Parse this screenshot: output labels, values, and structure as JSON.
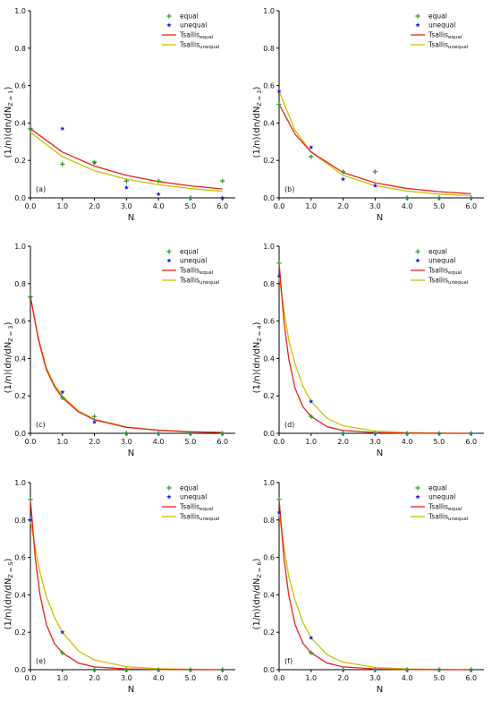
{
  "chart_data": [
    {
      "type": "scatter",
      "panel_label": "(a)",
      "xlabel": "N",
      "ylabel": {
        "prefix": "(1/n)(dn/dN",
        "sub": "Z = 1",
        "suffix": ")"
      },
      "xlim": [
        0,
        6.4
      ],
      "ylim": [
        0,
        1.0
      ],
      "xticks": [
        "0.0",
        "1.0",
        "2.0",
        "3.0",
        "4.0",
        "5.0",
        "6.0"
      ],
      "yticks": [
        "0.0",
        "0.2",
        "0.4",
        "0.6",
        "0.8",
        "1.0"
      ],
      "legend_position": "top-right",
      "points": {
        "equal": {
          "x": [
            0,
            1,
            2,
            3,
            4,
            5,
            6
          ],
          "y": [
            0.37,
            0.18,
            0.19,
            0.09,
            0.09,
            0.0,
            0.09
          ]
        },
        "unequal": {
          "x": [
            0,
            1,
            2,
            3,
            4,
            5,
            6
          ],
          "y": [
            0.37,
            0.37,
            0.19,
            0.055,
            0.02,
            0.0,
            0.0
          ]
        }
      },
      "curves": {
        "equal": {
          "x": [
            0,
            1,
            2,
            3,
            4,
            5,
            6
          ],
          "y": [
            0.37,
            0.245,
            0.17,
            0.12,
            0.087,
            0.064,
            0.048
          ]
        },
        "unequal": {
          "x": [
            0,
            1,
            2,
            3,
            4,
            5,
            6
          ],
          "y": [
            0.35,
            0.22,
            0.145,
            0.1,
            0.07,
            0.05,
            0.035
          ]
        }
      }
    },
    {
      "type": "scatter",
      "panel_label": "(b)",
      "xlabel": "N",
      "ylabel": {
        "prefix": "(1/n)(dn/dN",
        "sub": "Z = 2",
        "suffix": ")"
      },
      "xlim": [
        0,
        6.4
      ],
      "ylim": [
        0,
        1.0
      ],
      "xticks": [
        "0.0",
        "1.0",
        "2.0",
        "3.0",
        "4.0",
        "5.0",
        "6.0"
      ],
      "yticks": [
        "0.0",
        "0.2",
        "0.4",
        "0.6",
        "0.8",
        "1.0"
      ],
      "legend_position": "top-right",
      "points": {
        "equal": {
          "x": [
            0,
            1,
            2,
            3,
            4,
            5,
            6
          ],
          "y": [
            0.5,
            0.22,
            0.14,
            0.14,
            0.0,
            0.0,
            0.0
          ]
        },
        "unequal": {
          "x": [
            0,
            1,
            2,
            3,
            4,
            5,
            6
          ],
          "y": [
            0.57,
            0.27,
            0.1,
            0.065,
            0.0,
            0.0,
            0.0
          ]
        }
      },
      "curves": {
        "equal": {
          "x": [
            0,
            0.5,
            1,
            2,
            3,
            4,
            5,
            6
          ],
          "y": [
            0.5,
            0.34,
            0.245,
            0.135,
            0.08,
            0.05,
            0.033,
            0.022
          ]
        },
        "unequal": {
          "x": [
            0,
            0.5,
            1,
            2,
            3,
            4,
            5,
            6
          ],
          "y": [
            0.57,
            0.36,
            0.245,
            0.12,
            0.065,
            0.036,
            0.02,
            0.012
          ]
        }
      }
    },
    {
      "type": "scatter",
      "panel_label": "(c)",
      "xlabel": "N",
      "ylabel": {
        "prefix": "(1/n)(dn/dN",
        "sub": "Z = 3",
        "suffix": ")"
      },
      "xlim": [
        0,
        6.4
      ],
      "ylim": [
        0,
        1.0
      ],
      "xticks": [
        "0.0",
        "1.0",
        "2.0",
        "3.0",
        "4.0",
        "5.0",
        "6.0"
      ],
      "yticks": [
        "0.0",
        "0.2",
        "0.4",
        "0.6",
        "0.8",
        "1.0"
      ],
      "legend_position": "top-right",
      "points": {
        "equal": {
          "x": [
            0,
            1,
            2,
            3,
            4,
            5,
            6
          ],
          "y": [
            0.73,
            0.19,
            0.09,
            0.0,
            0.0,
            0.0,
            0.0
          ]
        },
        "unequal": {
          "x": [
            0,
            1,
            2,
            3,
            4,
            5,
            6
          ],
          "y": [
            0.73,
            0.22,
            0.06,
            0.0,
            0.0,
            0.0,
            0.0
          ]
        }
      },
      "curves": {
        "equal": {
          "x": [
            0,
            0.25,
            0.5,
            0.75,
            1,
            1.5,
            2,
            3,
            4,
            5,
            6
          ],
          "y": [
            0.73,
            0.5,
            0.34,
            0.25,
            0.19,
            0.115,
            0.072,
            0.032,
            0.016,
            0.008,
            0.004
          ]
        },
        "unequal": {
          "x": [
            0,
            0.25,
            0.5,
            0.75,
            1,
            1.5,
            2,
            3,
            4,
            5,
            6
          ],
          "y": [
            0.73,
            0.51,
            0.35,
            0.26,
            0.2,
            0.12,
            0.075,
            0.034,
            0.017,
            0.009,
            0.005
          ]
        }
      }
    },
    {
      "type": "scatter",
      "panel_label": "(d)",
      "xlabel": "N",
      "ylabel": {
        "prefix": "(1/n)(dn/dN",
        "sub": "Z = 4",
        "suffix": ")"
      },
      "xlim": [
        0,
        6.4
      ],
      "ylim": [
        0,
        1.0
      ],
      "xticks": [
        "0.0",
        "1.0",
        "2.0",
        "3.0",
        "4.0",
        "5.0",
        "6.0"
      ],
      "yticks": [
        "0.0",
        "0.2",
        "0.4",
        "0.6",
        "0.8",
        "1.0"
      ],
      "legend_position": "top-right",
      "points": {
        "equal": {
          "x": [
            0,
            1,
            2,
            3,
            4,
            5,
            6
          ],
          "y": [
            0.91,
            0.09,
            0.0,
            0.0,
            0.0,
            0.0,
            0.0
          ]
        },
        "unequal": {
          "x": [
            0,
            1,
            2,
            3,
            4,
            5,
            6
          ],
          "y": [
            0.84,
            0.17,
            0.0,
            0.0,
            0.0,
            0.0,
            0.0
          ]
        }
      },
      "curves": {
        "equal": {
          "x": [
            0,
            0.15,
            0.3,
            0.5,
            0.75,
            1,
            1.5,
            2,
            3,
            4,
            5,
            6
          ],
          "y": [
            0.91,
            0.6,
            0.4,
            0.24,
            0.14,
            0.09,
            0.035,
            0.015,
            0.004,
            0.001,
            0.0,
            0.0
          ]
        },
        "unequal": {
          "x": [
            0,
            0.15,
            0.3,
            0.5,
            0.75,
            1,
            1.5,
            2,
            3,
            4,
            5,
            6
          ],
          "y": [
            0.84,
            0.66,
            0.5,
            0.37,
            0.25,
            0.17,
            0.08,
            0.04,
            0.012,
            0.004,
            0.0015,
            0.0
          ]
        }
      }
    },
    {
      "type": "scatter",
      "panel_label": "(e)",
      "xlabel": "N",
      "ylabel": {
        "prefix": "(1/n)(dn/dN",
        "sub": "Z = 5",
        "suffix": ")"
      },
      "xlim": [
        0,
        6.4
      ],
      "ylim": [
        0,
        1.0
      ],
      "xticks": [
        "0.0",
        "1.0",
        "2.0",
        "3.0",
        "4.0",
        "5.0",
        "6.0"
      ],
      "yticks": [
        "0.0",
        "0.2",
        "0.4",
        "0.6",
        "0.8",
        "1.0"
      ],
      "legend_position": "top-right",
      "points": {
        "equal": {
          "x": [
            0,
            1,
            2,
            3,
            4,
            5,
            6
          ],
          "y": [
            0.91,
            0.09,
            0.0,
            0.0,
            0.0,
            0.0,
            0.0
          ]
        },
        "unequal": {
          "x": [
            0,
            1,
            2,
            3,
            4,
            5,
            6
          ],
          "y": [
            0.8,
            0.2,
            0.0,
            0.0,
            0.0,
            0.0,
            0.0
          ]
        }
      },
      "curves": {
        "equal": {
          "x": [
            0,
            0.15,
            0.3,
            0.5,
            0.75,
            1,
            1.5,
            2,
            3,
            4,
            5,
            6
          ],
          "y": [
            0.91,
            0.6,
            0.4,
            0.24,
            0.14,
            0.09,
            0.035,
            0.015,
            0.004,
            0.001,
            0.0,
            0.0
          ]
        },
        "unequal": {
          "x": [
            0,
            0.15,
            0.3,
            0.5,
            0.75,
            1,
            1.5,
            2,
            3,
            4,
            5,
            6
          ],
          "y": [
            0.8,
            0.65,
            0.52,
            0.39,
            0.28,
            0.2,
            0.1,
            0.052,
            0.016,
            0.005,
            0.002,
            0.0
          ]
        }
      }
    },
    {
      "type": "scatter",
      "panel_label": "(f)",
      "xlabel": "N",
      "ylabel": {
        "prefix": "(1/n)(dn/dN",
        "sub": "Z = 6",
        "suffix": ")"
      },
      "xlim": [
        0,
        6.4
      ],
      "ylim": [
        0,
        1.0
      ],
      "xticks": [
        "0.0",
        "1.0",
        "2.0",
        "3.0",
        "4.0",
        "5.0",
        "6.0"
      ],
      "yticks": [
        "0.0",
        "0.2",
        "0.4",
        "0.6",
        "0.8",
        "1.0"
      ],
      "legend_position": "top-right",
      "points": {
        "equal": {
          "x": [
            0,
            1,
            2,
            3,
            4,
            5,
            6
          ],
          "y": [
            0.91,
            0.09,
            0.0,
            0.0,
            0.0,
            0.0,
            0.0
          ]
        },
        "unequal": {
          "x": [
            0,
            1,
            2,
            3,
            4,
            5,
            6
          ],
          "y": [
            0.84,
            0.17,
            0.0,
            0.0,
            0.0,
            0.0,
            0.0
          ]
        }
      },
      "curves": {
        "equal": {
          "x": [
            0,
            0.15,
            0.3,
            0.5,
            0.75,
            1,
            1.5,
            2,
            3,
            4,
            5,
            6
          ],
          "y": [
            0.91,
            0.6,
            0.4,
            0.24,
            0.14,
            0.09,
            0.035,
            0.015,
            0.004,
            0.001,
            0.0,
            0.0
          ]
        },
        "unequal": {
          "x": [
            0,
            0.15,
            0.3,
            0.5,
            0.75,
            1,
            1.5,
            2,
            3,
            4,
            5,
            6
          ],
          "y": [
            0.84,
            0.66,
            0.5,
            0.37,
            0.25,
            0.17,
            0.08,
            0.04,
            0.012,
            0.004,
            0.0015,
            0.0
          ]
        }
      }
    }
  ],
  "legend": {
    "equal_points": "equal",
    "unequal_points": "unequal",
    "curve_equal": {
      "base": "Tsallis",
      "sub": "equal"
    },
    "curve_unequal": {
      "base": "Tsallis",
      "sub": "unequal"
    }
  },
  "colors": {
    "equal_marker": "#2ca02c",
    "unequal_marker": "#1f1fe0",
    "curve_equal": "#e8221f",
    "curve_unequal": "#c9c400",
    "axis": "#000000"
  },
  "markers": {
    "equal": "plus",
    "unequal": "star"
  }
}
